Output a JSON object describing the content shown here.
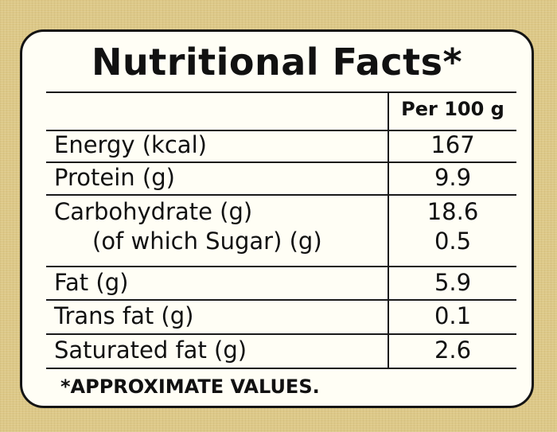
{
  "title": "Nutritional Facts*",
  "table": {
    "column_header": "Per 100 g",
    "rows": [
      {
        "label": "Energy (kcal)",
        "value": "167"
      },
      {
        "label": "Protein (g)",
        "value": "9.9"
      },
      {
        "label": "Carbohydrate (g)",
        "value": "18.6",
        "sub_label": "(of which Sugar) (g)",
        "sub_value": "0.5"
      },
      {
        "label": "Fat (g)",
        "value": "5.9"
      },
      {
        "label": "Trans fat (g)",
        "value": "0.1"
      },
      {
        "label": "Saturated fat (g)",
        "value": "2.6"
      }
    ]
  },
  "footnote": "*APPROXIMATE VALUES.",
  "colors": {
    "background": "#ddc887",
    "card": "#fffef5",
    "ink": "#111111"
  }
}
